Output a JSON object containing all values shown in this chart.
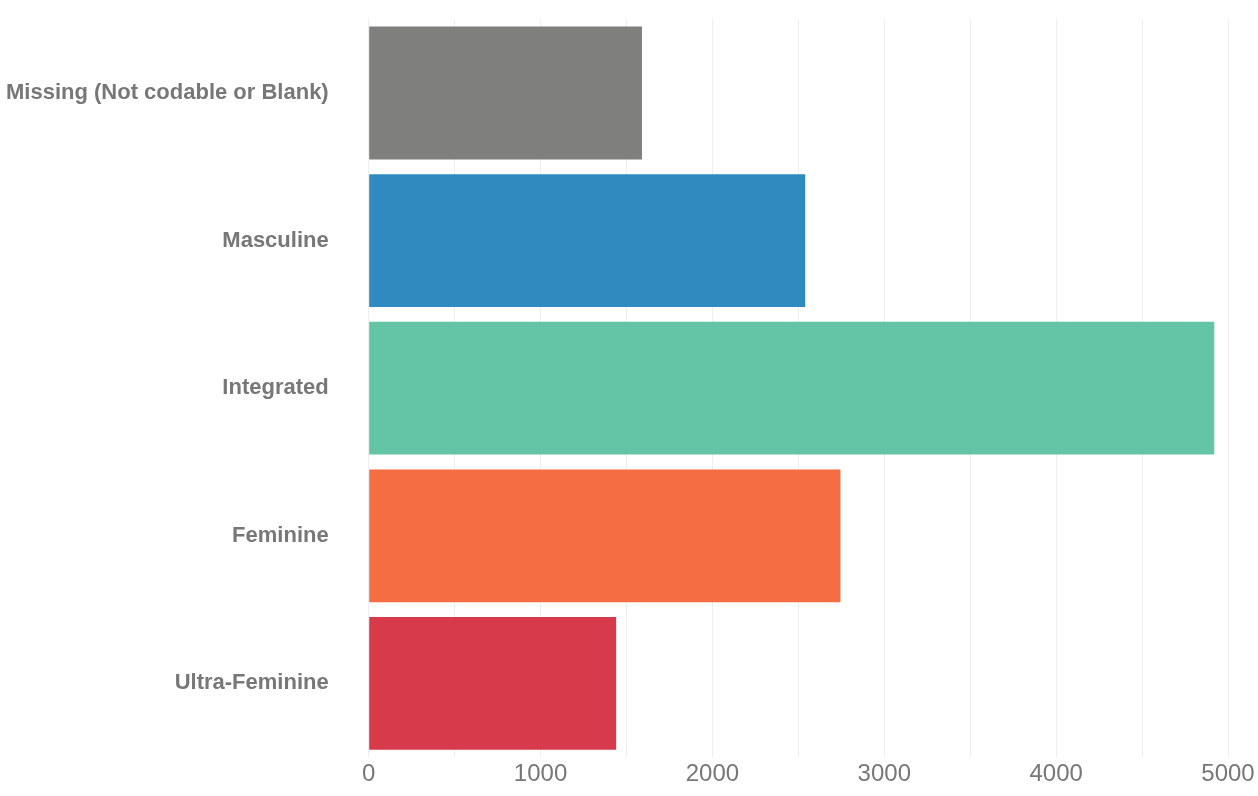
{
  "chart_data": {
    "type": "bar",
    "orientation": "horizontal",
    "categories": [
      "Missing (Not codable or Blank)",
      "Masculine",
      "Integrated",
      "Feminine",
      "Ultra-Feminine"
    ],
    "values": [
      1590,
      2540,
      4920,
      2745,
      1440
    ],
    "colors": [
      "#7f7f7d",
      "#2f8abf",
      "#63c5a5",
      "#f46d43",
      "#d73b4b"
    ],
    "xlim": [
      0,
      5000
    ],
    "xticks": [
      0,
      {
        "value": 500,
        "label": null
      },
      1000,
      {
        "value": 1500,
        "label": null
      },
      2000,
      {
        "value": 2500,
        "label": null
      },
      3000,
      {
        "value": 3500,
        "label": null
      },
      4000,
      {
        "value": 4500,
        "label": null
      },
      5000
    ],
    "grid": "x"
  }
}
